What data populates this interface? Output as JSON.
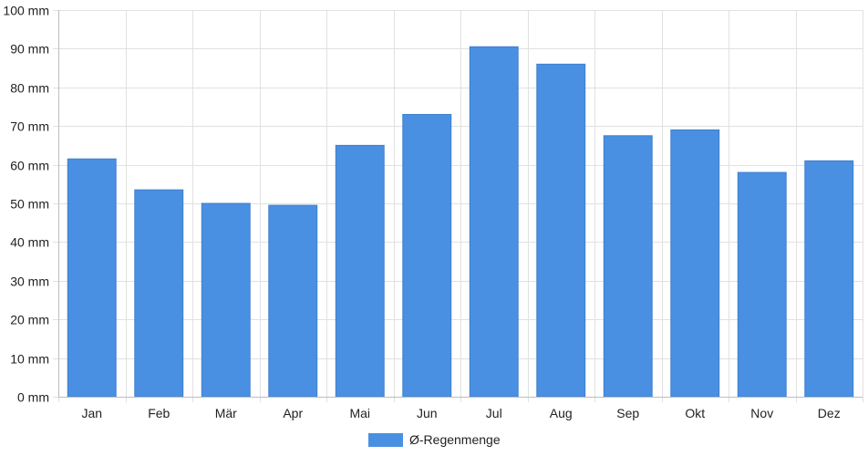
{
  "chart_data": {
    "type": "bar",
    "categories": [
      "Jan",
      "Feb",
      "Mär",
      "Apr",
      "Mai",
      "Jun",
      "Jul",
      "Aug",
      "Sep",
      "Okt",
      "Nov",
      "Dez"
    ],
    "series": [
      {
        "name": "Ø-Regenmenge",
        "color": "#4a90e2",
        "values": [
          61.5,
          53.5,
          50,
          49.5,
          65,
          73,
          90.5,
          86,
          67.5,
          69,
          58,
          61
        ]
      }
    ],
    "ylim": [
      0,
      100
    ],
    "yticks": [
      0,
      10,
      20,
      30,
      40,
      50,
      60,
      70,
      80,
      90,
      100
    ],
    "y_unit": "mm",
    "ytick_labels": [
      "0 mm",
      "10 mm",
      "20 mm",
      "30 mm",
      "40 mm",
      "50 mm",
      "60 mm",
      "70 mm",
      "80 mm",
      "90 mm",
      "100 mm"
    ],
    "grid": true,
    "legend_position": "bottom-center"
  }
}
